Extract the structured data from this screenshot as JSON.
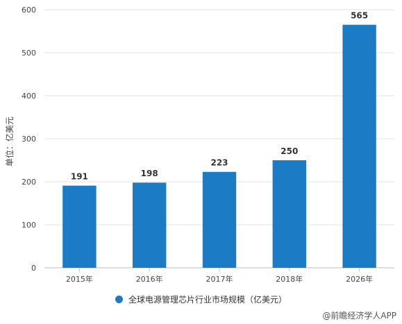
{
  "chart_data": {
    "type": "bar",
    "categories": [
      "2015年",
      "2016年",
      "2017年",
      "2018年",
      "2026年"
    ],
    "values": [
      191,
      198,
      223,
      250,
      565
    ],
    "ylabel": "单位：亿美元",
    "ylim": [
      0,
      600
    ],
    "yticks": [
      0,
      100,
      200,
      300,
      400,
      500,
      600
    ],
    "grid": true,
    "legend": {
      "label": "全球电源管理芯片行业市场规模（亿美元）",
      "position": "bottom"
    },
    "bar_color": "#1b7bc4"
  },
  "footer": {
    "source": "@前瞻经济学人APP"
  }
}
